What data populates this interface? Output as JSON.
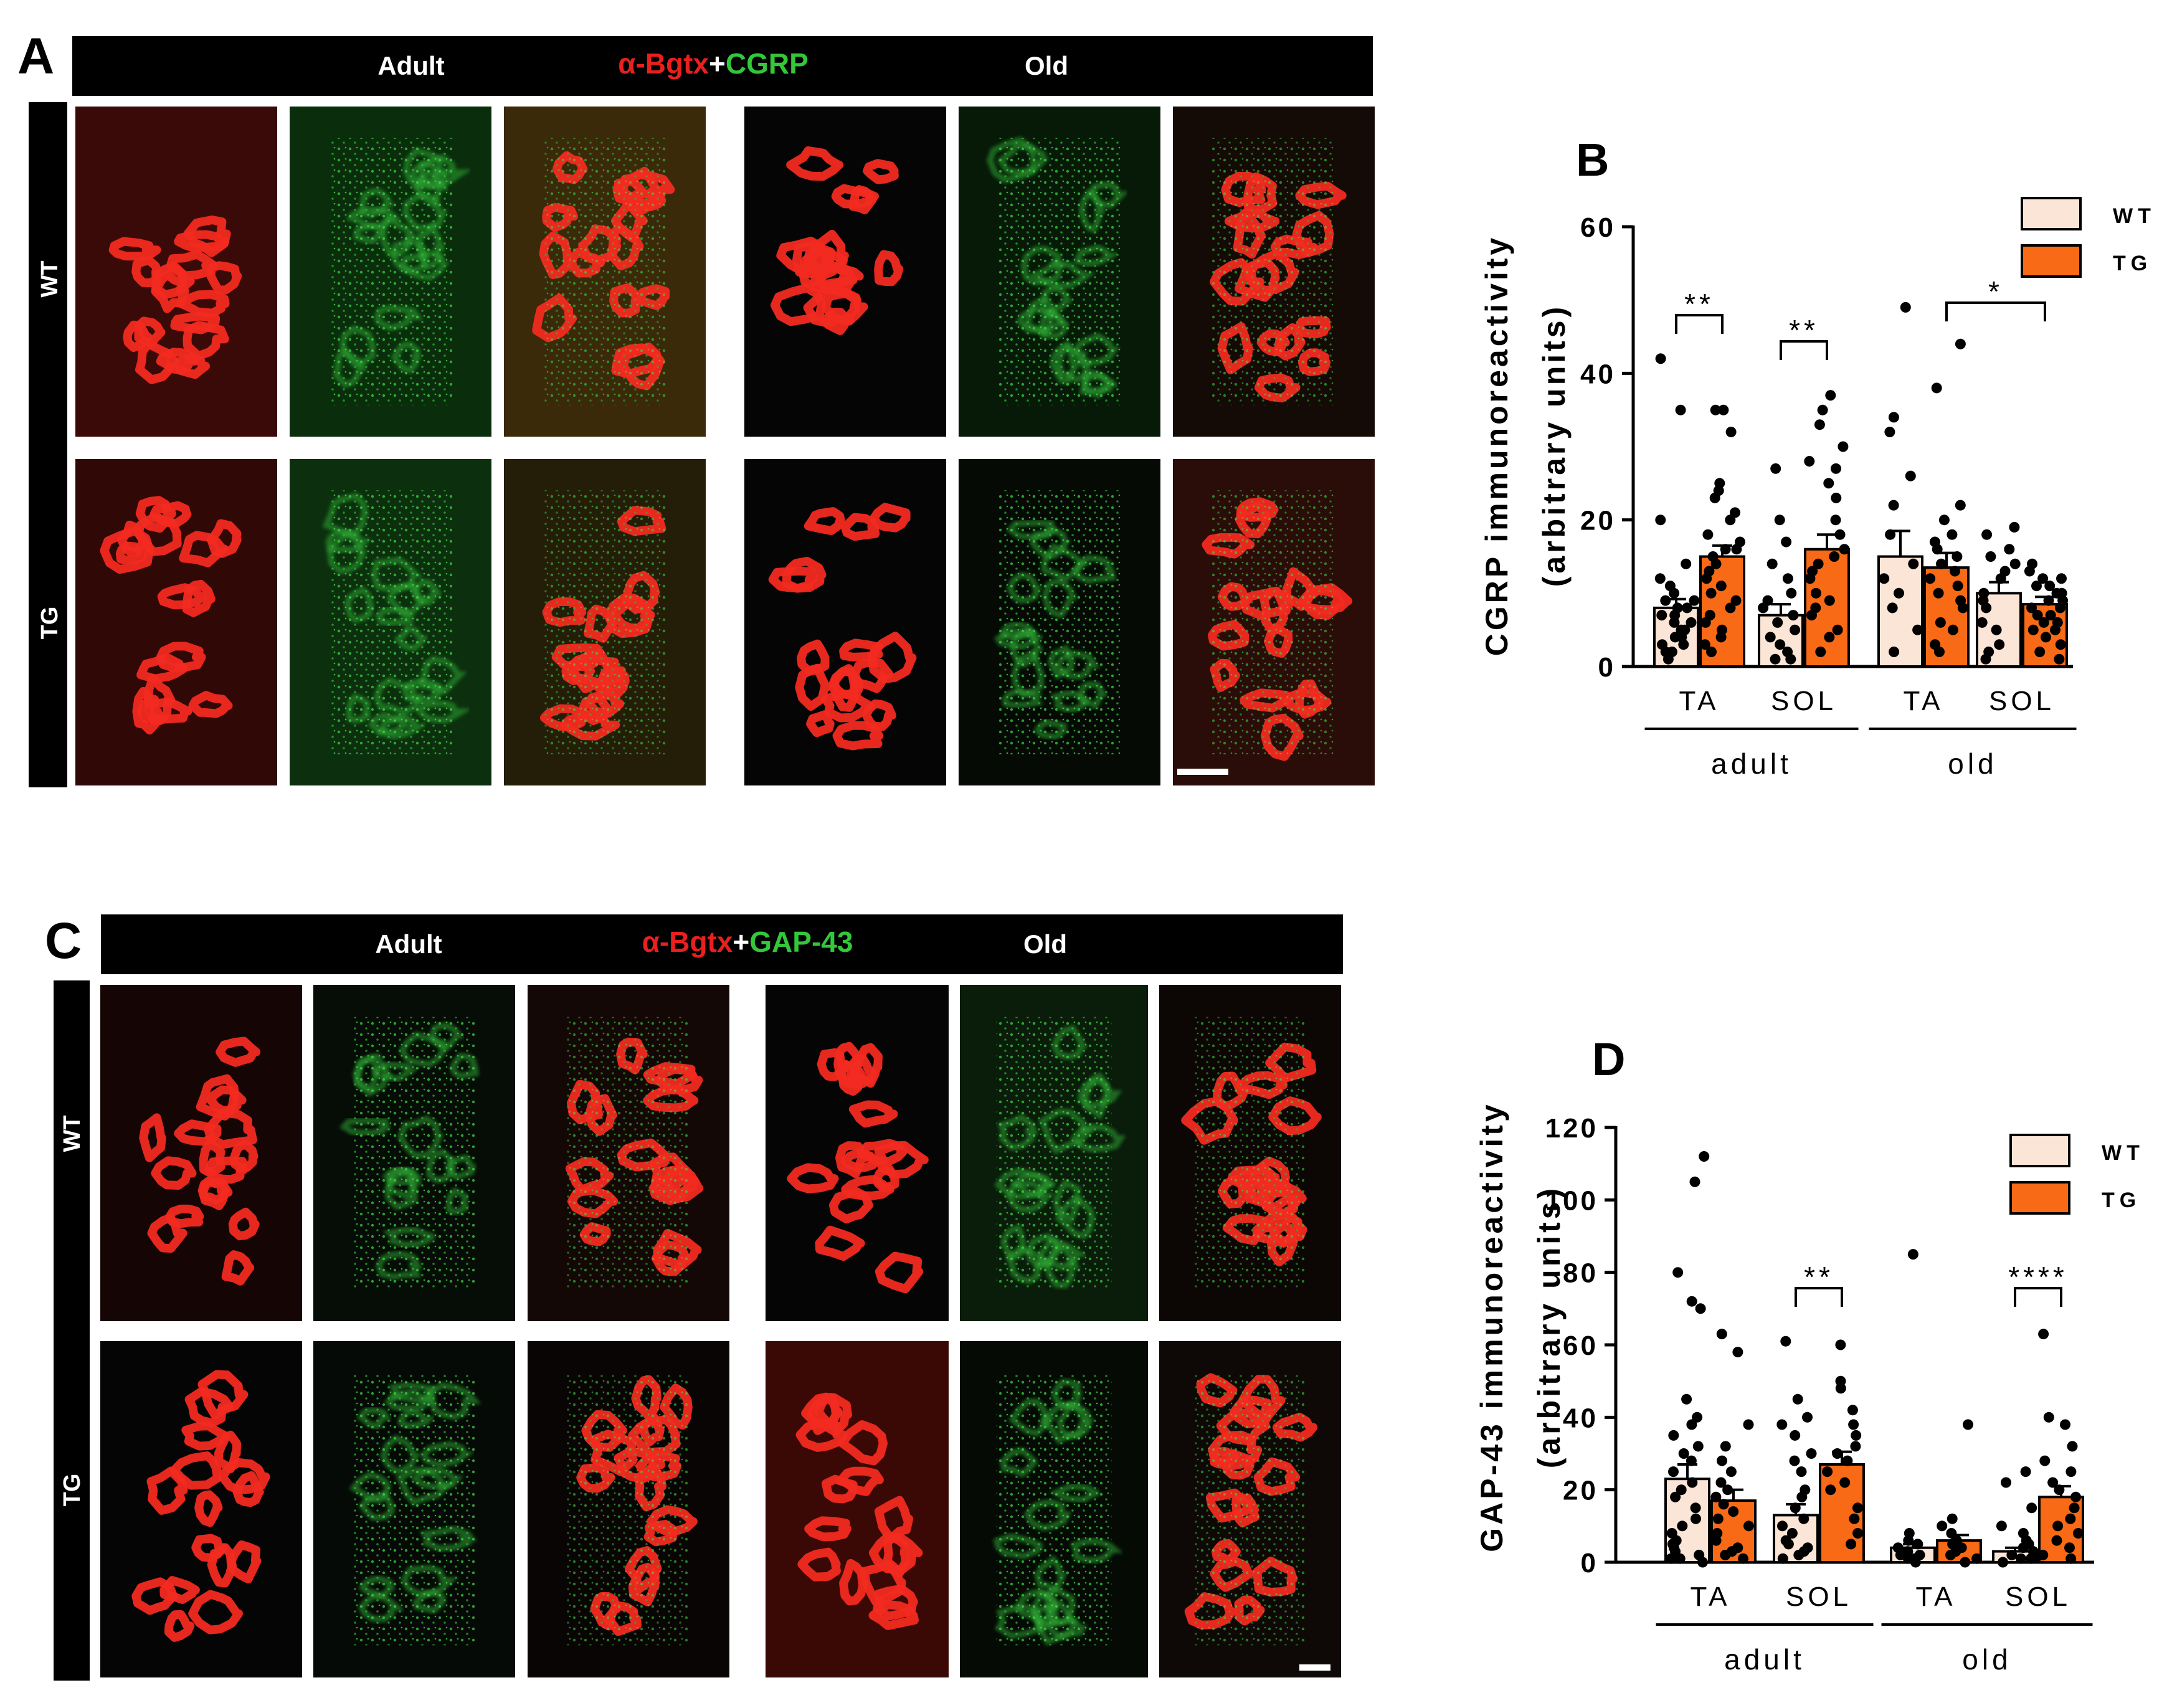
{
  "panel_a": {
    "letter": "A",
    "col_adult": "Adult",
    "title_red": "α-Bgtx",
    "title_plus": "+",
    "title_green": "CGRP",
    "col_old": "Old",
    "row_wt": "WT",
    "row_tg": "TG"
  },
  "panel_c": {
    "letter": "C",
    "col_adult": "Adult",
    "title_red": "α-Bgtx",
    "title_plus": "+",
    "title_green": "GAP-43",
    "col_old": "Old",
    "row_wt": "WT",
    "row_tg": "TG"
  },
  "colors": {
    "wt_fill": "#fbe5d6",
    "tg_fill": "#f96a16",
    "bgtx_red": "#e8201e",
    "marker_green": "#33c83a"
  },
  "chart_data": [
    {
      "type": "bar",
      "letter": "B",
      "ylabel_line1": "CGRP immunoreactivity",
      "ylabel_line2": "(arbitrary units)",
      "yticks": [
        "0",
        "20",
        "40",
        "60"
      ],
      "ylim": [
        0,
        60
      ],
      "categories": [
        "TA",
        "SOL",
        "TA",
        "SOL"
      ],
      "groups": [
        "adult",
        "old"
      ],
      "legend": {
        "placement": "top-right",
        "entries": [
          "WT",
          "TG"
        ]
      },
      "series": [
        {
          "name": "WT",
          "values": [
            8,
            7,
            15,
            10
          ],
          "sem": [
            1.2,
            1.5,
            3.5,
            1.5
          ]
        },
        {
          "name": "TG",
          "values": [
            15,
            16,
            13.5,
            8.5
          ],
          "sem": [
            1.5,
            2,
            2,
            1
          ]
        }
      ],
      "significance": [
        {
          "between": [
            [
              0,
              "WT"
            ],
            [
              0,
              "TG"
            ]
          ],
          "label": "**"
        },
        {
          "between": [
            [
              1,
              "WT"
            ],
            [
              1,
              "TG"
            ]
          ],
          "label": "**"
        },
        {
          "between": [
            [
              2,
              "TG"
            ],
            [
              3,
              "TG"
            ]
          ],
          "label": "*"
        }
      ],
      "points": {
        "WT": [
          [
            42,
            35,
            20,
            14,
            12,
            11,
            10,
            9,
            9,
            8,
            8,
            7,
            7,
            6,
            6,
            5,
            5,
            4,
            4,
            3,
            3,
            2,
            2,
            1
          ],
          [
            27,
            20,
            17,
            14,
            12,
            10,
            9,
            8,
            7,
            6,
            5,
            4,
            3,
            2,
            1,
            1
          ],
          [
            49,
            34,
            32,
            26,
            22,
            18,
            14,
            12,
            10,
            8,
            5,
            2
          ],
          [
            19,
            18,
            16,
            15,
            14,
            13,
            12,
            10,
            9,
            8,
            6,
            5,
            3,
            2,
            1
          ]
        ],
        "TG": [
          [
            35,
            35,
            32,
            25,
            24,
            23,
            21,
            20,
            18,
            17,
            16,
            16,
            15,
            14,
            13,
            12,
            11,
            10,
            9,
            8,
            7,
            6,
            5,
            4,
            3,
            2
          ],
          [
            37,
            35,
            33,
            30,
            28,
            27,
            25,
            23,
            20,
            18,
            16,
            15,
            14,
            13,
            12,
            10,
            9,
            8,
            7,
            5,
            4,
            2
          ],
          [
            44,
            38,
            22,
            20,
            18,
            17,
            16,
            15,
            14,
            13,
            12,
            11,
            10,
            9,
            8,
            6,
            5,
            3,
            2
          ],
          [
            14,
            13,
            12,
            12,
            11,
            11,
            10,
            10,
            9,
            9,
            8,
            8,
            7,
            7,
            6,
            6,
            5,
            5,
            4,
            3,
            2,
            1
          ]
        ]
      }
    },
    {
      "type": "bar",
      "letter": "D",
      "ylabel_line1": "GAP-43 immunoreactivity",
      "ylabel_line2": "(arbitrary units)",
      "yticks": [
        "0",
        "20",
        "40",
        "60",
        "80",
        "100",
        "120"
      ],
      "ylim": [
        0,
        120
      ],
      "categories": [
        "TA",
        "SOL",
        "TA",
        "SOL"
      ],
      "groups": [
        "adult",
        "old"
      ],
      "legend": {
        "placement": "top-right",
        "entries": [
          "WT",
          "TG"
        ]
      },
      "series": [
        {
          "name": "WT",
          "values": [
            23,
            13,
            4,
            3
          ],
          "sem": [
            4,
            3,
            1,
            1
          ]
        },
        {
          "name": "TG",
          "values": [
            17,
            27,
            6,
            18
          ],
          "sem": [
            3,
            3.5,
            1.5,
            3
          ]
        }
      ],
      "significance": [
        {
          "between": [
            [
              1,
              "WT"
            ],
            [
              1,
              "TG"
            ]
          ],
          "label": "**"
        },
        {
          "between": [
            [
              3,
              "WT"
            ],
            [
              3,
              "TG"
            ]
          ],
          "label": "****"
        }
      ],
      "points": {
        "WT": [
          [
            112,
            105,
            80,
            72,
            70,
            45,
            40,
            38,
            35,
            32,
            30,
            28,
            25,
            22,
            20,
            18,
            15,
            12,
            10,
            8,
            6,
            5,
            4,
            3,
            2,
            1,
            1,
            0
          ],
          [
            61,
            45,
            40,
            38,
            35,
            30,
            28,
            25,
            20,
            18,
            15,
            12,
            10,
            8,
            6,
            5,
            4,
            3,
            2,
            1
          ],
          [
            85,
            8,
            6,
            5,
            4,
            3,
            2,
            2,
            1,
            1,
            0
          ],
          [
            25,
            22,
            15,
            10,
            8,
            6,
            5,
            4,
            3,
            2,
            1,
            1,
            0
          ]
        ],
        "TG": [
          [
            63,
            58,
            38,
            32,
            28,
            25,
            22,
            20,
            18,
            16,
            14,
            12,
            10,
            8,
            6,
            4,
            3,
            2,
            1
          ],
          [
            60,
            50,
            48,
            42,
            38,
            35,
            32,
            30,
            28,
            25,
            22,
            20,
            15,
            12,
            8,
            5
          ],
          [
            38,
            12,
            10,
            8,
            6,
            5,
            4,
            3,
            2,
            1,
            0
          ],
          [
            63,
            40,
            38,
            32,
            28,
            25,
            22,
            20,
            18,
            15,
            12,
            10,
            8,
            6,
            4,
            2,
            1
          ]
        ]
      }
    }
  ]
}
